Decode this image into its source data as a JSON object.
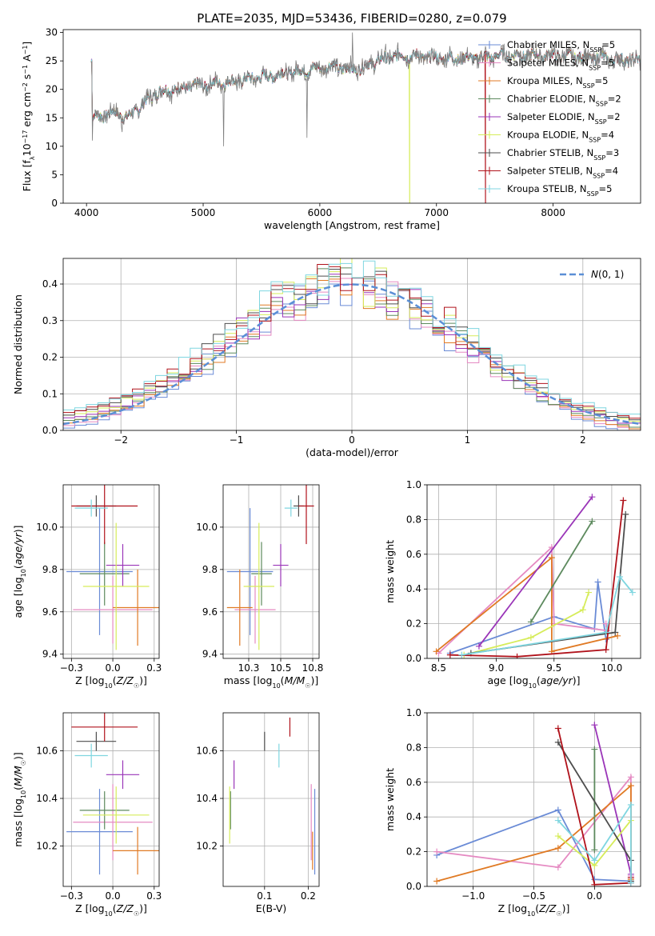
{
  "figure": {
    "title": "PLATE=2035, MJD=53436, FIBERID=0280, z=0.079",
    "colors": {
      "Chabrier MILES": "#6a8bd6",
      "Salpeter MILES": "#e58ac2",
      "Kroupa MILES": "#e07a24",
      "Chabrier ELODIE": "#5d8a5e",
      "Salpeter ELODIE": "#9a35b8",
      "Kroupa ELODIE": "#d6ec5a",
      "Chabrier STELIB": "#4d4d4d",
      "Salpeter STELIB": "#b0121b",
      "Kroupa STELIB": "#7fd6e0",
      "data": "#808080",
      "normal": "#5b8fd6"
    }
  },
  "chart_data": [
    {
      "id": "spectrum",
      "type": "line",
      "title": "PLATE=2035, MJD=53436, FIBERID=0280, z=0.079",
      "xlabel": "wavelength [Angstrom, rest frame]",
      "ylabel": "Flux [f_λ 10^-17 erg cm^-2 s^-1 A^-1]",
      "xlim": [
        3800,
        8750
      ],
      "ylim": [
        0,
        30.5
      ],
      "xticks": [
        4000,
        5000,
        6000,
        7000,
        8000
      ],
      "yticks": [
        0,
        5,
        10,
        15,
        20,
        25,
        30
      ],
      "grid": false,
      "legend_position": "upper right",
      "legend": [
        {
          "name": "Chabrier MILES",
          "nssp": "5"
        },
        {
          "name": "Salpeter MILES",
          "nssp": "5"
        },
        {
          "name": "Kroupa MILES",
          "nssp": "5"
        },
        {
          "name": "Chabrier ELODIE",
          "nssp": "2"
        },
        {
          "name": "Salpeter ELODIE",
          "nssp": "2"
        },
        {
          "name": "Kroupa ELODIE",
          "nssp": "4"
        },
        {
          "name": "Chabrier STELIB",
          "nssp": "3"
        },
        {
          "name": "Salpeter STELIB",
          "nssp": "4"
        },
        {
          "name": "Kroupa STELIB",
          "nssp": "5"
        }
      ],
      "continuum": [
        [
          4050,
          15
        ],
        [
          4250,
          16
        ],
        [
          4350,
          15
        ],
        [
          4600,
          19.5
        ],
        [
          4900,
          20.5
        ],
        [
          5100,
          21
        ],
        [
          5300,
          21.5
        ],
        [
          5600,
          22.5
        ],
        [
          5900,
          23.5
        ],
        [
          6100,
          24
        ],
        [
          6300,
          23.5
        ],
        [
          6500,
          25
        ],
        [
          6700,
          26
        ],
        [
          7000,
          25.5
        ],
        [
          7300,
          25.5
        ],
        [
          7600,
          26
        ],
        [
          8000,
          26
        ],
        [
          8400,
          25.5
        ],
        [
          8700,
          25
        ]
      ],
      "features": [
        [
          4050,
          11,
          0
        ],
        [
          4305,
          12.5,
          0
        ],
        [
          5175,
          10,
          0
        ],
        [
          5890,
          11.5,
          0
        ],
        [
          6280,
          30,
          1
        ],
        [
          6565,
          28,
          1
        ],
        [
          6600,
          27,
          1
        ]
      ],
      "dropouts": [
        {
          "model": "Kroupa ELODIE",
          "x": 6770
        },
        {
          "model": "Salpeter STELIB",
          "x": 7420
        }
      ],
      "data_xrange": [
        4040,
        8750
      ]
    },
    {
      "id": "residuals",
      "type": "histogram",
      "xlabel": "(data-model)/error",
      "ylabel": "Normed distribution",
      "xlim": [
        -2.5,
        2.5
      ],
      "ylim": [
        0,
        0.47
      ],
      "xticks": [
        -2,
        -1,
        0,
        1,
        2
      ],
      "yticks": [
        0,
        0.1,
        0.2,
        0.3,
        0.4
      ],
      "grid": true,
      "bin_width": 0.1,
      "normal_curve": {
        "label": "N(0,1)",
        "mean": 0,
        "sigma": 1
      },
      "legend_position": "upper right"
    },
    {
      "id": "age_vs_Z",
      "type": "errorbar",
      "xlabel": "Z [log10(Z/Z☉)]",
      "ylabel": "age [log10(age/yr)]",
      "xlim": [
        -0.3,
        0.28
      ],
      "ylim": [
        9.38,
        10.2
      ],
      "xticks": [
        -0.25,
        0,
        0.25
      ],
      "yticks": [
        9.4,
        9.6,
        9.8,
        10.0
      ],
      "grid": true,
      "points": [
        {
          "model": "Chabrier MILES",
          "x": -0.08,
          "xerr": 0.2,
          "y": 9.79,
          "yerr": 0.3
        },
        {
          "model": "Salpeter MILES",
          "x": 0.0,
          "xerr": 0.24,
          "y": 9.61,
          "yerr": 0.16
        },
        {
          "model": "Kroupa MILES",
          "x": 0.15,
          "xerr": 0.15,
          "y": 9.62,
          "yerr": 0.18
        },
        {
          "model": "Chabrier ELODIE",
          "x": -0.05,
          "xerr": 0.15,
          "y": 9.78,
          "yerr": 0.15
        },
        {
          "model": "Salpeter ELODIE",
          "x": 0.06,
          "xerr": 0.1,
          "y": 9.82,
          "yerr": 0.1
        },
        {
          "model": "Kroupa ELODIE",
          "x": 0.02,
          "xerr": 0.2,
          "y": 9.72,
          "yerr": 0.3
        },
        {
          "model": "Chabrier STELIB",
          "x": -0.1,
          "xerr": 0.12,
          "y": 10.1,
          "yerr": 0.05
        },
        {
          "model": "Salpeter STELIB",
          "x": -0.05,
          "xerr": 0.2,
          "y": 10.1,
          "yerr": 0.18
        },
        {
          "model": "Kroupa STELIB",
          "x": -0.13,
          "xerr": 0.1,
          "y": 10.09,
          "yerr": 0.04
        }
      ]
    },
    {
      "id": "age_vs_mass",
      "type": "errorbar",
      "xlabel": "mass [log10(M/M☉)]",
      "ylabel": "",
      "xlim": [
        10.05,
        10.8
      ],
      "ylim": [
        9.38,
        10.2
      ],
      "xticks": [
        10.25,
        10.5,
        10.75
      ],
      "yticks": [
        9.4,
        9.6,
        9.8,
        10.0
      ],
      "grid": true,
      "points": [
        {
          "model": "Chabrier MILES",
          "x": 10.26,
          "xerr": 0.18,
          "y": 9.79,
          "yerr": 0.3
        },
        {
          "model": "Salpeter MILES",
          "x": 10.3,
          "xerr": 0.16,
          "y": 9.61,
          "yerr": 0.16
        },
        {
          "model": "Kroupa MILES",
          "x": 10.18,
          "xerr": 0.1,
          "y": 9.62,
          "yerr": 0.18
        },
        {
          "model": "Chabrier ELODIE",
          "x": 10.35,
          "xerr": 0.08,
          "y": 9.78,
          "yerr": 0.15
        },
        {
          "model": "Salpeter ELODIE",
          "x": 10.5,
          "xerr": 0.06,
          "y": 9.82,
          "yerr": 0.1
        },
        {
          "model": "Kroupa ELODIE",
          "x": 10.33,
          "xerr": 0.12,
          "y": 9.72,
          "yerr": 0.3
        },
        {
          "model": "Chabrier STELIB",
          "x": 10.64,
          "xerr": 0.04,
          "y": 10.1,
          "yerr": 0.05
        },
        {
          "model": "Salpeter STELIB",
          "x": 10.7,
          "xerr": 0.06,
          "y": 10.1,
          "yerr": 0.18
        },
        {
          "model": "Kroupa STELIB",
          "x": 10.58,
          "xerr": 0.05,
          "y": 10.09,
          "yerr": 0.04
        }
      ]
    },
    {
      "id": "weight_vs_age",
      "type": "line",
      "xlabel": "age [log10(age/yr)]",
      "ylabel": "mass weight",
      "xlim": [
        8.4,
        10.25
      ],
      "ylim": [
        0,
        1
      ],
      "xticks": [
        8.5,
        9.0,
        9.5,
        10.0
      ],
      "yticks": [
        0.0,
        0.2,
        0.4,
        0.6,
        0.8,
        1.0
      ],
      "grid": true,
      "series": [
        {
          "model": "Chabrier MILES",
          "x": [
            8.6,
            9.5,
            9.85,
            9.88,
            9.95
          ],
          "y": [
            0.03,
            0.24,
            0.17,
            0.44,
            0.11
          ]
        },
        {
          "model": "Salpeter MILES",
          "x": [
            8.5,
            9.48,
            9.5,
            9.96,
            9.95
          ],
          "y": [
            0.03,
            0.64,
            0.2,
            0.16,
            0.2
          ]
        },
        {
          "model": "Kroupa MILES",
          "x": [
            8.48,
            9.48,
            9.48,
            10.05
          ],
          "y": [
            0.04,
            0.58,
            0.04,
            0.13
          ]
        },
        {
          "model": "Chabrier ELODIE",
          "x": [
            9.3,
            9.83
          ],
          "y": [
            0.21,
            0.79
          ]
        },
        {
          "model": "Salpeter ELODIE",
          "x": [
            8.85,
            9.83
          ],
          "y": [
            0.07,
            0.93
          ]
        },
        {
          "model": "Kroupa ELODIE",
          "x": [
            8.72,
            9.3,
            9.75,
            9.8
          ],
          "y": [
            0.02,
            0.12,
            0.28,
            0.38
          ]
        },
        {
          "model": "Chabrier STELIB",
          "x": [
            8.78,
            10.03,
            10.12
          ],
          "y": [
            0.03,
            0.15,
            0.83
          ]
        },
        {
          "model": "Salpeter STELIB",
          "x": [
            8.6,
            9.18,
            9.95,
            10.1
          ],
          "y": [
            0.02,
            0.01,
            0.05,
            0.91
          ]
        },
        {
          "model": "Kroupa STELIB",
          "x": [
            8.7,
            9.95,
            10.07,
            10.18
          ],
          "y": [
            0.02,
            0.15,
            0.47,
            0.38
          ]
        }
      ]
    },
    {
      "id": "mass_vs_Z",
      "type": "errorbar",
      "xlabel": "Z [log10(Z/Z☉)]",
      "ylabel": "mass [log10(M/M☉)]",
      "xlim": [
        -0.3,
        0.28
      ],
      "ylim": [
        10.03,
        10.76
      ],
      "xticks": [
        -0.25,
        0,
        0.25
      ],
      "yticks": [
        10.2,
        10.4,
        10.6
      ],
      "grid": true,
      "points": [
        {
          "model": "Chabrier MILES",
          "x": -0.08,
          "xerr": 0.2,
          "y": 10.26,
          "yerr": 0.18
        },
        {
          "model": "Salpeter MILES",
          "x": 0.0,
          "xerr": 0.24,
          "y": 10.3,
          "yerr": 0.16
        },
        {
          "model": "Kroupa MILES",
          "x": 0.15,
          "xerr": 0.15,
          "y": 10.18,
          "yerr": 0.1
        },
        {
          "model": "Chabrier ELODIE",
          "x": -0.05,
          "xerr": 0.15,
          "y": 10.35,
          "yerr": 0.08
        },
        {
          "model": "Salpeter ELODIE",
          "x": 0.06,
          "xerr": 0.1,
          "y": 10.5,
          "yerr": 0.06
        },
        {
          "model": "Kroupa ELODIE",
          "x": 0.02,
          "xerr": 0.2,
          "y": 10.33,
          "yerr": 0.12
        },
        {
          "model": "Chabrier STELIB",
          "x": -0.1,
          "xerr": 0.12,
          "y": 10.64,
          "yerr": 0.04
        },
        {
          "model": "Salpeter STELIB",
          "x": -0.05,
          "xerr": 0.2,
          "y": 10.7,
          "yerr": 0.06
        },
        {
          "model": "Kroupa STELIB",
          "x": -0.13,
          "xerr": 0.1,
          "y": 10.58,
          "yerr": 0.05
        }
      ]
    },
    {
      "id": "mass_vs_ebv",
      "type": "errorbar",
      "xlabel": "E(B-V)",
      "ylabel": "",
      "xlim": [
        0.005,
        0.225
      ],
      "ylim": [
        10.03,
        10.76
      ],
      "xticks": [
        0.1,
        0.2
      ],
      "yticks": [
        10.2,
        10.4,
        10.6
      ],
      "grid": true,
      "points": [
        {
          "model": "Chabrier MILES",
          "x": 0.215,
          "xerr": 0,
          "y": 10.26,
          "yerr": 0.18
        },
        {
          "model": "Salpeter MILES",
          "x": 0.207,
          "xerr": 0,
          "y": 10.3,
          "yerr": 0.16
        },
        {
          "model": "Kroupa MILES",
          "x": 0.21,
          "xerr": 0,
          "y": 10.18,
          "yerr": 0.08
        },
        {
          "model": "Chabrier ELODIE",
          "x": 0.022,
          "xerr": 0,
          "y": 10.35,
          "yerr": 0.08
        },
        {
          "model": "Salpeter ELODIE",
          "x": 0.03,
          "xerr": 0,
          "y": 10.5,
          "yerr": 0.06
        },
        {
          "model": "Kroupa ELODIE",
          "x": 0.02,
          "xerr": 0,
          "y": 10.33,
          "yerr": 0.12
        },
        {
          "model": "Chabrier STELIB",
          "x": 0.1,
          "xerr": 0,
          "y": 10.64,
          "yerr": 0.04
        },
        {
          "model": "Salpeter STELIB",
          "x": 0.158,
          "xerr": 0,
          "y": 10.7,
          "yerr": 0.04
        },
        {
          "model": "Kroupa STELIB",
          "x": 0.133,
          "xerr": 0,
          "y": 10.58,
          "yerr": 0.05
        }
      ]
    },
    {
      "id": "weight_vs_Z",
      "type": "line",
      "xlabel": "Z [log10(Z/Z☉)]",
      "ylabel": "mass weight",
      "xlim": [
        -1.38,
        0.38
      ],
      "ylim": [
        0,
        1
      ],
      "xticks": [
        -1.0,
        -0.5,
        0.0
      ],
      "yticks": [
        0.0,
        0.2,
        0.4,
        0.6,
        0.8,
        1.0
      ],
      "grid": true,
      "series": [
        {
          "model": "Chabrier MILES",
          "x": [
            -1.3,
            -0.3,
            0.0,
            0.3
          ],
          "y": [
            0.18,
            0.44,
            0.04,
            0.03
          ]
        },
        {
          "model": "Salpeter MILES",
          "x": [
            -1.3,
            -0.3,
            0.3,
            0.3
          ],
          "y": [
            0.2,
            0.11,
            0.63,
            0.06
          ]
        },
        {
          "model": "Kroupa MILES",
          "x": [
            -1.3,
            -0.3,
            0.3,
            0.3
          ],
          "y": [
            0.03,
            0.22,
            0.58,
            0.04
          ]
        },
        {
          "model": "Chabrier ELODIE",
          "x": [
            0.0,
            0.0
          ],
          "y": [
            0.21,
            0.79
          ]
        },
        {
          "model": "Salpeter ELODIE",
          "x": [
            0.0,
            0.3
          ],
          "y": [
            0.93,
            0.07
          ]
        },
        {
          "model": "Kroupa ELODIE",
          "x": [
            -0.3,
            0.0,
            0.3
          ],
          "y": [
            0.29,
            0.12,
            0.38
          ]
        },
        {
          "model": "Chabrier STELIB",
          "x": [
            -0.3,
            0.3,
            0.3
          ],
          "y": [
            0.83,
            0.15,
            0.03
          ]
        },
        {
          "model": "Salpeter STELIB",
          "x": [
            -0.3,
            0.0,
            0.3,
            0.3
          ],
          "y": [
            0.91,
            0.01,
            0.02,
            0.05
          ]
        },
        {
          "model": "Kroupa STELIB",
          "x": [
            -0.3,
            0.0,
            0.3,
            0.3
          ],
          "y": [
            0.38,
            0.15,
            0.47,
            0.02
          ]
        }
      ]
    }
  ]
}
